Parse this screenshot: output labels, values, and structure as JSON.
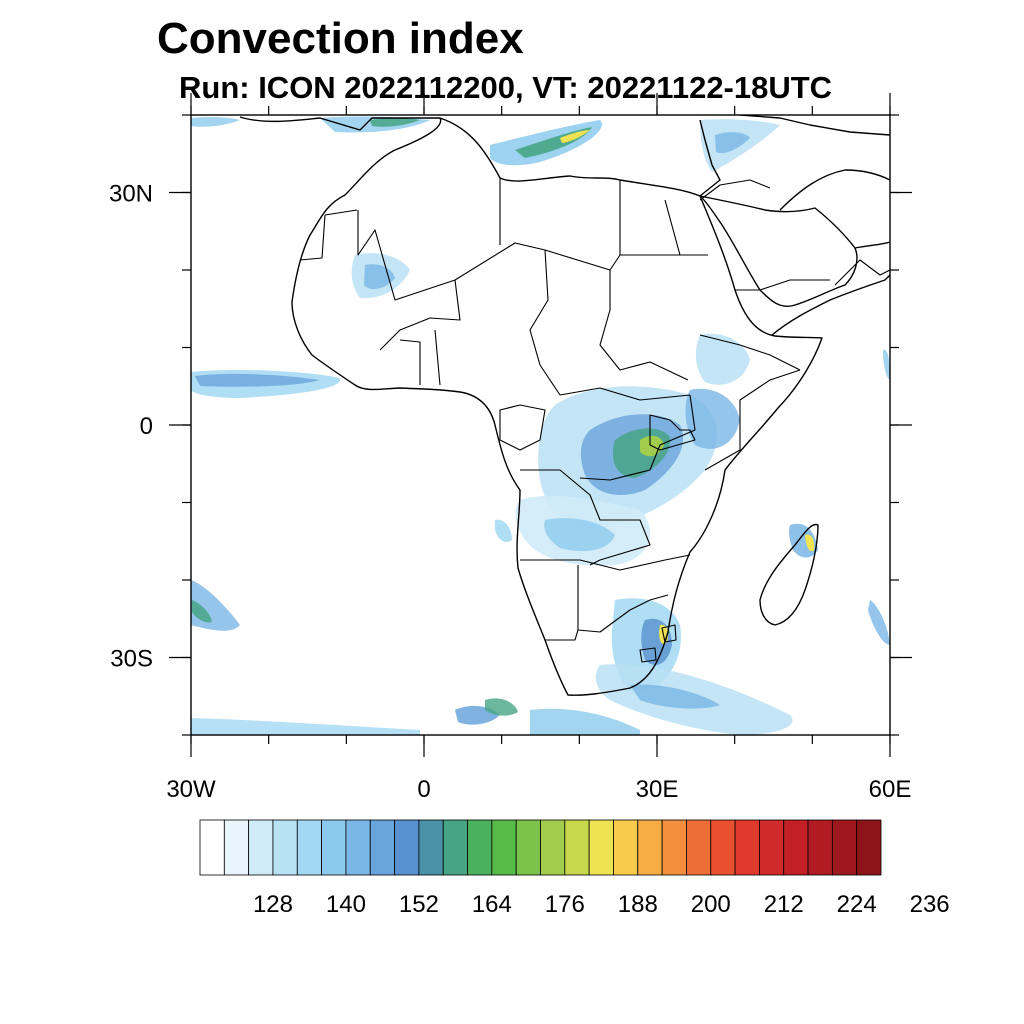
{
  "title": "Convection index",
  "subtitle": "Run: ICON 2022112200,  VT: 20221122-18UTC",
  "map": {
    "lon_range": [
      -30,
      60
    ],
    "lat_range": [
      -40,
      40
    ],
    "x_ticks": [
      {
        "lon": -30,
        "label": "30W"
      },
      {
        "lon": 0,
        "label": "0"
      },
      {
        "lon": 30,
        "label": "30E"
      },
      {
        "lon": 60,
        "label": "60E"
      }
    ],
    "y_ticks": [
      {
        "lat": 30,
        "label": "30N"
      },
      {
        "lat": 0,
        "label": "0"
      },
      {
        "lat": -30,
        "label": "30S"
      }
    ],
    "minor_lon_step": 10,
    "minor_lat_step": 10
  },
  "colorbar": {
    "colors": [
      "#ffffff",
      "#e8f5fc",
      "#d0ebf8",
      "#b9e1f4",
      "#a2d8f2",
      "#8ccaed",
      "#7ab6e6",
      "#6aa4dc",
      "#5891d0",
      "#4b92a8",
      "#47a585",
      "#4ab25e",
      "#57bb47",
      "#7cc34b",
      "#a2cd4c",
      "#c8d84d",
      "#efe354",
      "#f8cb4d",
      "#f6ad44",
      "#f38f3d",
      "#ee6e36",
      "#e8502f",
      "#df3a2d",
      "#d02a2a",
      "#c21f26",
      "#b01c22",
      "#9e181d",
      "#8d1419"
    ],
    "labels": [
      "128",
      "140",
      "152",
      "164",
      "176",
      "188",
      "200",
      "212",
      "224",
      "236"
    ]
  }
}
